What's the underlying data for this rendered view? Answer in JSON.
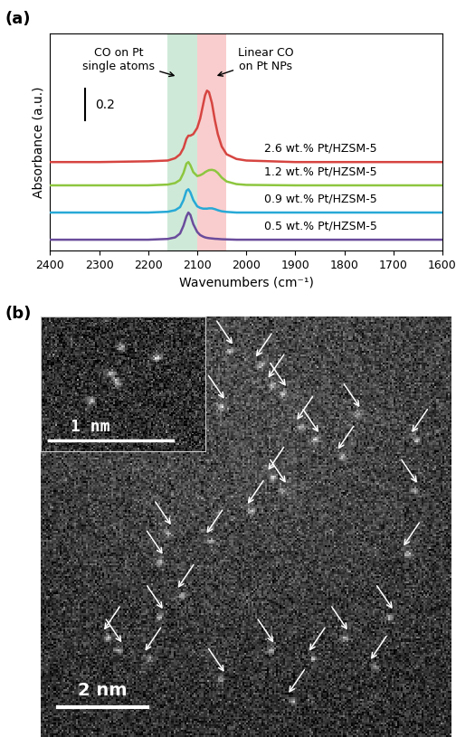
{
  "chart_data": {
    "type": "line",
    "panel_label": "(a)",
    "x_label": "Wavenumbers (cm⁻¹)",
    "y_label": "Absorbance (a.u.)",
    "xlim": [
      2400,
      1600
    ],
    "xticks": [
      2400,
      2300,
      2200,
      2100,
      2000,
      1900,
      1800,
      1700,
      1600
    ],
    "ylim": [
      0,
      1.4
    ],
    "tick_labels": "x",
    "grid": false,
    "scale_bar": {
      "value": 0.2,
      "label": "0.2"
    },
    "bands": [
      {
        "label": "CO on Pt\nsingle atoms",
        "range": [
          2160,
          2100
        ],
        "color": "#cfe9d8"
      },
      {
        "label": "Linear CO\non Pt NPs",
        "range": [
          2100,
          2040
        ],
        "color": "#f9cdcd"
      }
    ],
    "x": [
      2400,
      2300,
      2200,
      2160,
      2145,
      2135,
      2128,
      2122,
      2118,
      2114,
      2108,
      2100,
      2094,
      2088,
      2084,
      2080,
      2076,
      2070,
      2064,
      2058,
      2050,
      2040,
      2020,
      2000,
      1900,
      1800,
      1600
    ],
    "series": [
      {
        "name": "0.5 wt.% Pt/HZSM-5",
        "color": "#6a4c9c",
        "offset": 0.07,
        "values": [
          0,
          0,
          0,
          0.005,
          0.015,
          0.04,
          0.09,
          0.15,
          0.175,
          0.16,
          0.1,
          0.05,
          0.03,
          0.02,
          0.015,
          0.012,
          0.01,
          0.008,
          0.006,
          0.005,
          0.003,
          0.002,
          0,
          0,
          0,
          0,
          0
        ]
      },
      {
        "name": "0.9 wt.% Pt/HZSM-5",
        "color": "#27a9d6",
        "offset": 0.245,
        "values": [
          0,
          0,
          0,
          0.005,
          0.015,
          0.035,
          0.08,
          0.14,
          0.15,
          0.13,
          0.08,
          0.04,
          0.03,
          0.025,
          0.025,
          0.025,
          0.027,
          0.027,
          0.022,
          0.015,
          0.008,
          0.004,
          0,
          0,
          0,
          0,
          0
        ]
      },
      {
        "name": "1.2 wt.% Pt/HZSM-5",
        "color": "#8dc63f",
        "offset": 0.42,
        "values": [
          0,
          0,
          0,
          0.005,
          0.015,
          0.035,
          0.08,
          0.14,
          0.15,
          0.13,
          0.085,
          0.06,
          0.065,
          0.075,
          0.085,
          0.092,
          0.098,
          0.1,
          0.095,
          0.08,
          0.05,
          0.025,
          0.008,
          0.003,
          0,
          0,
          0
        ]
      },
      {
        "name": "2.6 wt.% Pt/HZSM-5",
        "color": "#d64541",
        "offset": 0.57,
        "values": [
          0,
          0,
          0.005,
          0.01,
          0.025,
          0.05,
          0.09,
          0.15,
          0.17,
          0.17,
          0.18,
          0.22,
          0.28,
          0.37,
          0.43,
          0.46,
          0.45,
          0.38,
          0.27,
          0.18,
          0.1,
          0.05,
          0.02,
          0.01,
          0,
          0,
          0
        ]
      }
    ]
  },
  "image_panel": {
    "panel_label": "(b)",
    "scale_bar": "2 nm",
    "inset_scale_bar": "1 nm"
  }
}
